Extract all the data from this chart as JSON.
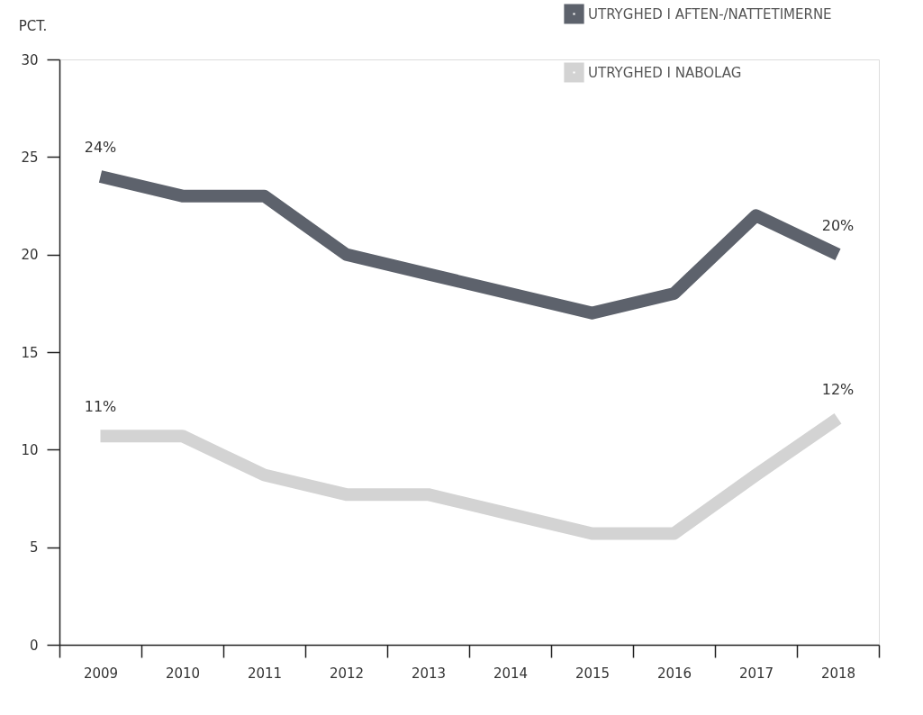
{
  "chart_data": {
    "type": "line",
    "ylabel": "PCT.",
    "categories": [
      "2009",
      "2010",
      "2011",
      "2012",
      "2013",
      "2014",
      "2015",
      "2016",
      "2017",
      "2018"
    ],
    "series": [
      {
        "name": "UTRYGHED I AFTEN-/NATTETIMERNE",
        "color": "#5d626c",
        "values": [
          24,
          23,
          23,
          20,
          19,
          18,
          17,
          18,
          22,
          20
        ],
        "value_labels": [
          "24%",
          null,
          null,
          null,
          null,
          null,
          null,
          null,
          null,
          "20%"
        ]
      },
      {
        "name": "UTRYGHED I NABOLAG",
        "color": "#d3d3d3",
        "values": [
          10.7,
          10.7,
          8.7,
          7.7,
          7.7,
          6.7,
          5.7,
          5.7,
          8.7,
          11.6
        ],
        "value_labels": [
          "11%",
          null,
          null,
          null,
          null,
          null,
          null,
          null,
          null,
          "12%"
        ]
      }
    ],
    "ylim": [
      0,
      30
    ],
    "yticks": [
      0,
      5,
      10,
      15,
      20,
      25,
      30
    ],
    "grid": false,
    "legend": "top right",
    "marker": "none",
    "line_style": "solid"
  }
}
